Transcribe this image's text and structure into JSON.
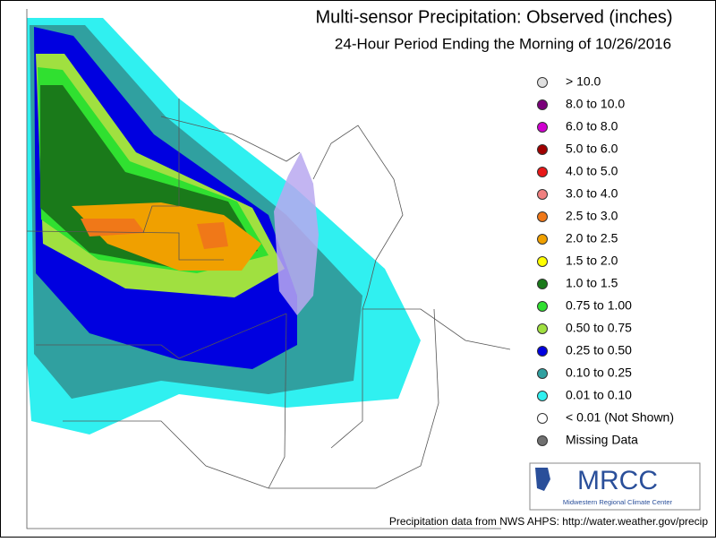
{
  "header": {
    "title": "Multi-sensor Precipitation:  Observed (inches)",
    "subtitle": "24-Hour Period Ending the Morning of 10/26/2016"
  },
  "legend": {
    "items": [
      {
        "label": "> 10.0",
        "color": "#e0e0e0"
      },
      {
        "label": "8.0 to 10.0",
        "color": "#7a007a"
      },
      {
        "label": "6.0 to 8.0",
        "color": "#d000d0"
      },
      {
        "label": "5.0 to 6.0",
        "color": "#a00000"
      },
      {
        "label": "4.0 to 5.0",
        "color": "#e81818"
      },
      {
        "label": "3.0 to 4.0",
        "color": "#f08080"
      },
      {
        "label": "2.5 to 3.0",
        "color": "#f07818"
      },
      {
        "label": "2.0 to 2.5",
        "color": "#f0a000"
      },
      {
        "label": "1.5 to 2.0",
        "color": "#ffff00"
      },
      {
        "label": "1.0 to 1.5",
        "color": "#1a7a1a"
      },
      {
        "label": "0.75 to 1.00",
        "color": "#30e030"
      },
      {
        "label": "0.50 to 0.75",
        "color": "#a0e040"
      },
      {
        "label": "0.25 to 0.50",
        "color": "#0000e0"
      },
      {
        "label": "0.10 to 0.25",
        "color": "#30a0a0"
      },
      {
        "label": "0.01 to 0.10",
        "color": "#30f0f0"
      },
      {
        "label": "< 0.01 (Not Shown)",
        "color": "#ffffff"
      },
      {
        "label": "Missing Data",
        "color": "#707070"
      }
    ]
  },
  "logo": {
    "name": "MRCC",
    "full_name": "Midwestern Regional Climate Center"
  },
  "footer": {
    "source": "Precipitation data from NWS AHPS: http://water.weather.gov/precip"
  }
}
